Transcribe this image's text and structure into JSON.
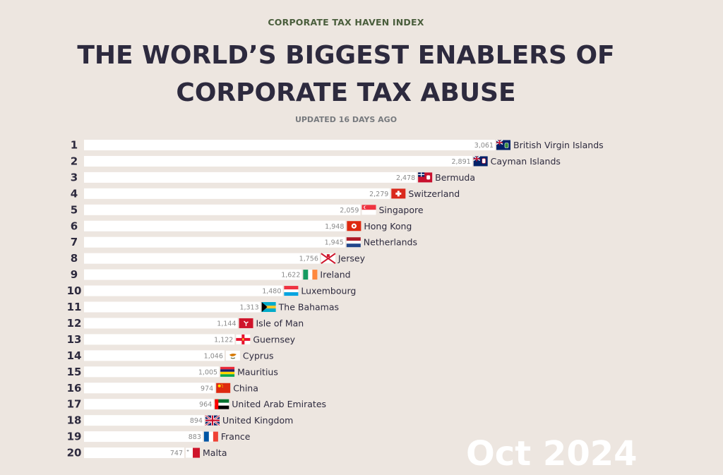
{
  "header": {
    "kicker": "CORPORATE TAX HAVEN INDEX",
    "title_line1": "THE WORLD’S BIGGEST ENABLERS OF",
    "title_line2": "CORPORATE TAX ABUSE",
    "updated": "UPDATED 16 DAYS AGO",
    "watermark": "Oct 2024"
  },
  "colors": {
    "background": "#ede6e0",
    "bar": "#ffffff",
    "title": "#2d2a3e",
    "kicker": "#4a5e3c",
    "value_text": "#8a8a8a"
  },
  "chart_data": {
    "type": "bar",
    "orientation": "horizontal",
    "title": "THE WORLD’S BIGGEST ENABLERS OF CORPORATE TAX ABUSE",
    "subtitle": "CORPORATE TAX HAVEN INDEX",
    "xlim": [
      0,
      3061
    ],
    "grid": false,
    "ranks": [
      "1",
      "2",
      "3",
      "4",
      "5",
      "6",
      "7",
      "8",
      "9",
      "10",
      "11",
      "12",
      "13",
      "14",
      "15",
      "16",
      "17",
      "18",
      "19",
      "20"
    ],
    "categories": [
      "British Virgin Islands",
      "Cayman Islands",
      "Bermuda",
      "Switzerland",
      "Singapore",
      "Hong Kong",
      "Netherlands",
      "Jersey",
      "Ireland",
      "Luxembourg",
      "The Bahamas",
      "Isle of Man",
      "Guernsey",
      "Cyprus",
      "Mauritius",
      "China",
      "United Arab Emirates",
      "United Kingdom",
      "France",
      "Malta"
    ],
    "values": [
      3061,
      2891,
      2478,
      2279,
      2059,
      1948,
      1945,
      1756,
      1622,
      1480,
      1313,
      1144,
      1122,
      1046,
      1005,
      974,
      964,
      894,
      883,
      747
    ],
    "value_labels": [
      "3,061",
      "2,891",
      "2,478",
      "2,279",
      "2,059",
      "1,948",
      "1,945",
      "1,756",
      "1,622",
      "1,480",
      "1,313",
      "1,144",
      "1,122",
      "1,046",
      "1,005",
      "974",
      "964",
      "894",
      "883",
      "747"
    ],
    "flags": [
      "vg-flag",
      "ky-flag",
      "bm-flag",
      "ch-flag",
      "sg-flag",
      "hk-flag",
      "nl-flag",
      "je-flag",
      "ie-flag",
      "lu-flag",
      "bs-flag",
      "im-flag",
      "gg-flag",
      "cy-flag",
      "mu-flag",
      "cn-flag",
      "ae-flag",
      "gb-flag",
      "fr-flag",
      "mt-flag"
    ]
  }
}
